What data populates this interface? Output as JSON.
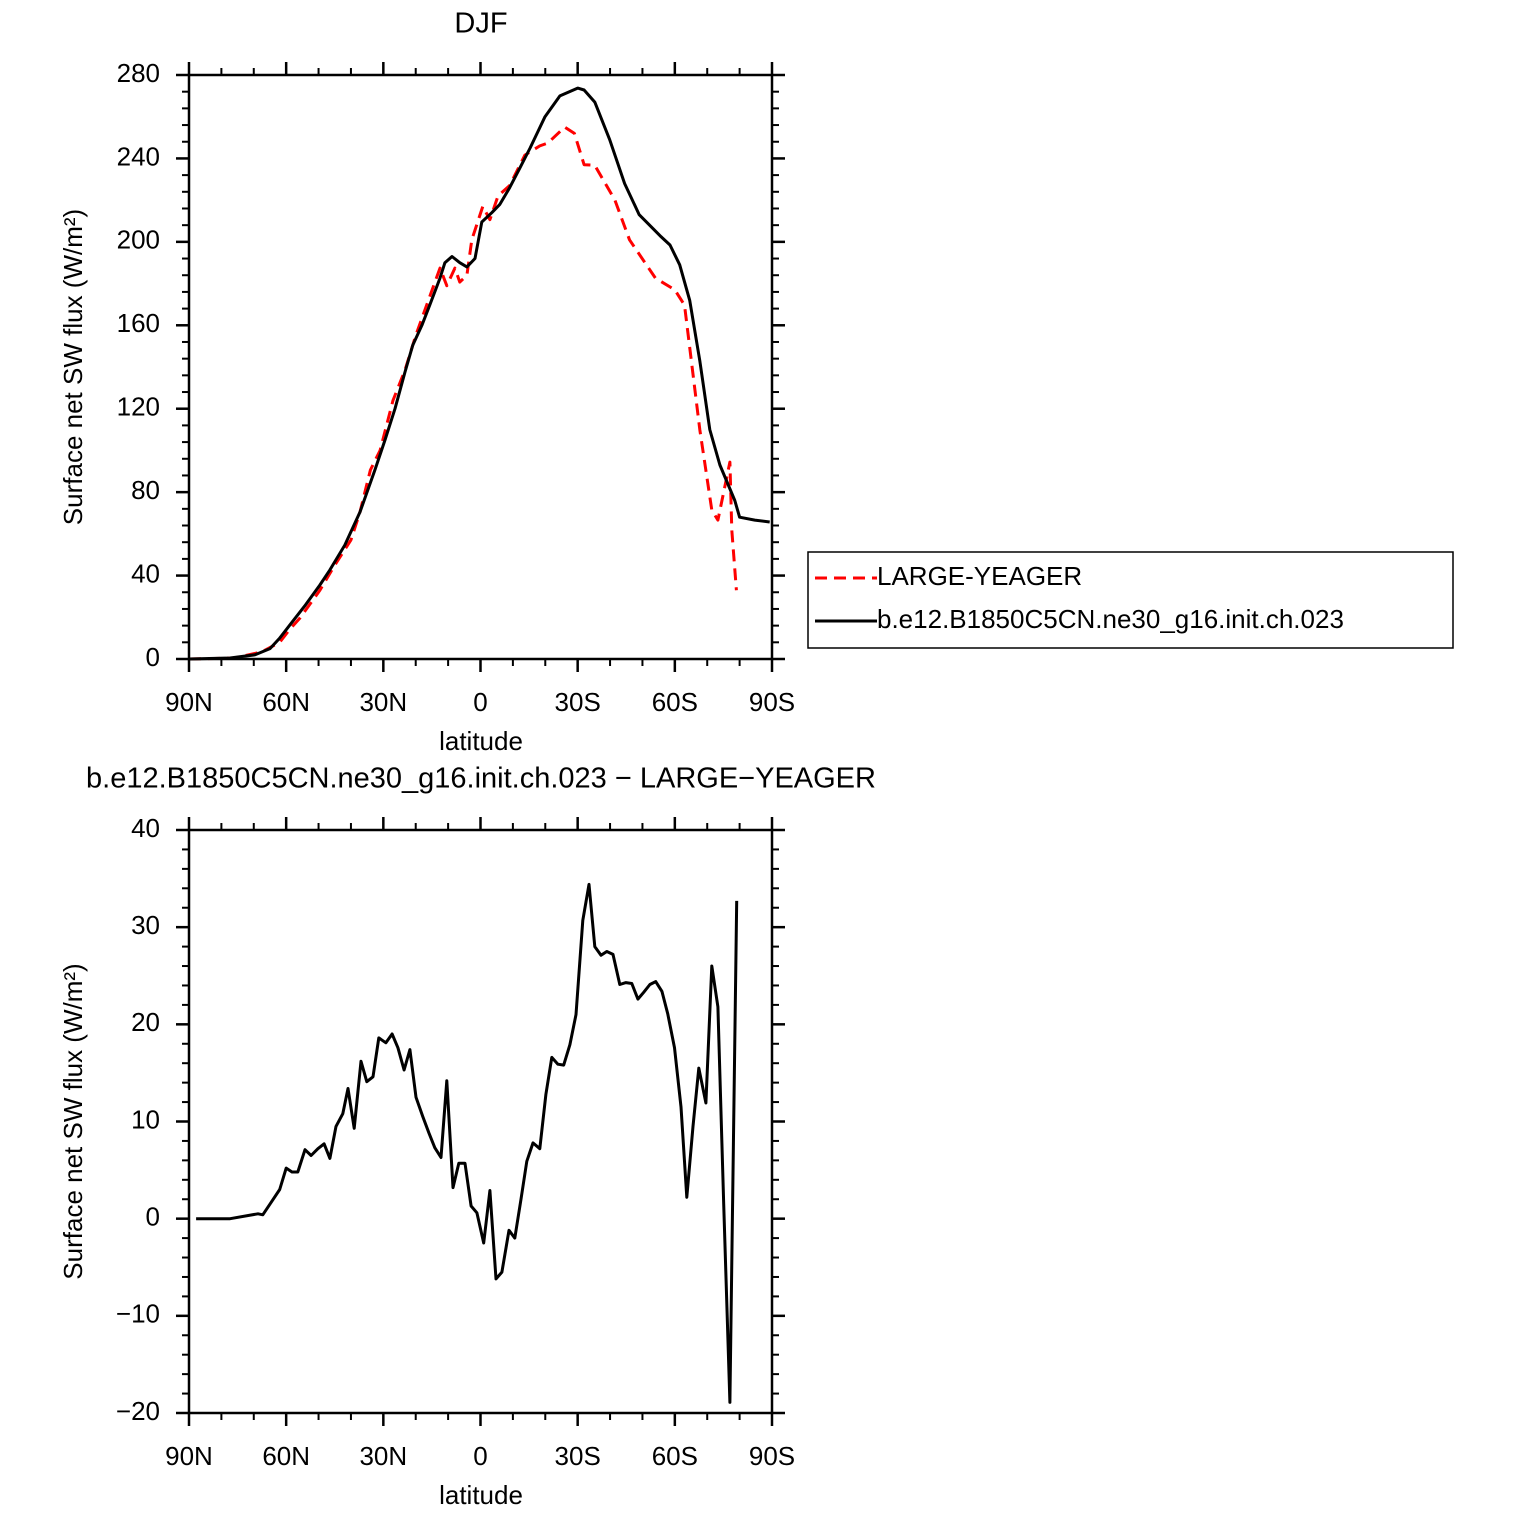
{
  "chart_data": [
    {
      "type": "line",
      "title": "DJF",
      "xlabel": "latitude",
      "ylabel": "Surface net SW flux (W/m²)",
      "xlim": [
        90,
        -90
      ],
      "xticks": [
        {
          "value": 90,
          "label": "90N"
        },
        {
          "value": 60,
          "label": "60N"
        },
        {
          "value": 30,
          "label": "30N"
        },
        0,
        {
          "value": -30,
          "label": "30S"
        },
        {
          "value": -60,
          "label": "60S"
        },
        {
          "value": -90,
          "label": "90S"
        }
      ],
      "ylim": [
        0,
        280
      ],
      "yticks": [
        0,
        40,
        80,
        120,
        160,
        200,
        240,
        280
      ],
      "legend": "right",
      "series": [
        {
          "name": "LARGE-YEAGER",
          "color": "#ff0000",
          "dash": true,
          "x": [
            90,
            76,
            67.5,
            62,
            59,
            55.7,
            49.6,
            45,
            40,
            37.2,
            34,
            31,
            27,
            23.3,
            20,
            17,
            12.5,
            10.4,
            7.9,
            6.4,
            4.2,
            2.7,
            -0.7,
            -2.9,
            -5.4,
            -9,
            -13.7,
            -18.3,
            -20.8,
            -26,
            -29,
            -32,
            -35.3,
            -41.5,
            -46,
            -54,
            -60,
            -63,
            -67.7,
            -71.4,
            -73.3,
            -77,
            -77.6,
            -79
          ],
          "values": [
            0,
            0.5,
            3.4,
            8,
            14,
            19.7,
            33,
            45,
            57,
            70.5,
            90.6,
            100,
            124,
            138.5,
            155,
            168,
            187.4,
            179,
            187.4,
            180.7,
            184,
            201,
            217,
            210.6,
            222,
            227,
            241.6,
            246,
            247.4,
            255,
            252,
            237,
            236.7,
            220,
            201,
            182.6,
            177,
            169.7,
            110,
            71.4,
            66.6,
            94.4,
            61.8,
            33
          ]
        },
        {
          "name": "b.e12.B1850C5CN.ne30_g16.init.ch.023",
          "color": "#000000",
          "dash": false,
          "x": [
            90,
            77.3,
            69.6,
            65,
            62,
            59,
            54,
            49.6,
            46.5,
            41.9,
            37.2,
            32.6,
            29.5,
            26.4,
            23.3,
            20.9,
            18.1,
            15.6,
            12.5,
            11,
            8.8,
            6.4,
            4.2,
            1.7,
            -0.4,
            -3.5,
            -6,
            -9,
            -12,
            -15.3,
            -19.9,
            -24.5,
            -30,
            -32,
            -35.3,
            -39.9,
            -44.5,
            -49,
            -55.4,
            -58.5,
            -61.5,
            -64.6,
            -67.7,
            -70.8,
            -73.9,
            -78.5,
            -80,
            -84.7,
            -89.3
          ],
          "values": [
            0,
            0.5,
            2,
            5,
            10,
            16,
            26,
            35.5,
            42.7,
            54.6,
            70.5,
            90.6,
            105,
            120,
            137.6,
            150.5,
            160,
            170,
            182.6,
            190,
            193,
            190,
            188,
            192,
            209.5,
            214,
            218,
            226,
            235,
            245,
            260,
            270,
            273.7,
            272.8,
            267,
            249,
            228,
            213,
            203,
            198.5,
            189,
            172,
            143,
            110,
            93,
            76,
            68,
            66.6,
            65.7
          ]
        }
      ]
    },
    {
      "type": "line",
      "title": "b.e12.B1850C5CN.ne30_g16.init.ch.023 − LARGE−YEAGER",
      "xlabel": "latitude",
      "ylabel": "Surface net SW flux (W/m²)",
      "xlim": [
        90,
        -90
      ],
      "xticks": [
        {
          "value": 90,
          "label": "90N"
        },
        {
          "value": 60,
          "label": "60N"
        },
        {
          "value": 30,
          "label": "30N"
        },
        0,
        {
          "value": -30,
          "label": "30S"
        },
        {
          "value": -60,
          "label": "60S"
        },
        {
          "value": -90,
          "label": "90S"
        }
      ],
      "ylim": [
        -20,
        40
      ],
      "yticks": [
        {
          "value": -20,
          "label": "−20"
        },
        {
          "value": -10,
          "label": "−10"
        },
        0,
        10,
        20,
        30,
        40
      ],
      "series": [
        {
          "color": "#000000",
          "dash": false,
          "x": [
            87.8,
            77.3,
            68.7,
            67.2,
            65,
            62,
            60,
            58.2,
            56.4,
            54.2,
            52.3,
            50.2,
            48.3,
            46.5,
            44.6,
            42.5,
            40.9,
            39,
            36.9,
            35.1,
            33.2,
            31.4,
            29.2,
            27.3,
            25.5,
            23.6,
            21.8,
            19.9,
            17.8,
            15.9,
            14.1,
            12.2,
            10.4,
            8.5,
            6.7,
            4.8,
            2.9,
            1.1,
            -1,
            -2.9,
            -4.8,
            -6.6,
            -8.8,
            -10.6,
            -12.5,
            -14.3,
            -16.2,
            -18.3,
            -20.2,
            -22,
            -23.9,
            -25.7,
            -27.6,
            -29.5,
            -31.6,
            -33.5,
            -35.3,
            -37.2,
            -39,
            -40.9,
            -43,
            -44.9,
            -46.7,
            -48.6,
            -50.4,
            -52.3,
            -54.1,
            -56,
            -57.8,
            -59.9,
            -61.9,
            -63.7,
            -65.6,
            -67.4,
            -69.6,
            -71.4,
            -73.3,
            -75.1,
            -77,
            -79.1
          ],
          "values": [
            0,
            0,
            0.5,
            0.4,
            1.5,
            3,
            5.2,
            4.8,
            4.8,
            7.1,
            6.5,
            7.2,
            7.7,
            6.2,
            9.5,
            10.8,
            13.4,
            9.3,
            16.2,
            14.1,
            14.6,
            18.6,
            18.1,
            19,
            17.6,
            15.3,
            17.4,
            12.5,
            10.5,
            8.8,
            7.3,
            6.3,
            14.2,
            3.2,
            5.7,
            5.7,
            1.3,
            0.6,
            -2.5,
            2.9,
            -6.2,
            -5.5,
            -1.2,
            -2,
            2,
            5.9,
            7.8,
            7.2,
            12.8,
            16.6,
            15.9,
            15.8,
            17.9,
            21,
            30.7,
            34.4,
            28,
            27.1,
            27.5,
            27.2,
            24.1,
            24.3,
            24.2,
            22.6,
            23.3,
            24.1,
            24.4,
            23.4,
            21.1,
            17.6,
            11.5,
            2.2,
            9.5,
            15.5,
            11.9,
            26,
            21.8,
            1.5,
            -18.9,
            32.7
          ]
        }
      ]
    }
  ]
}
